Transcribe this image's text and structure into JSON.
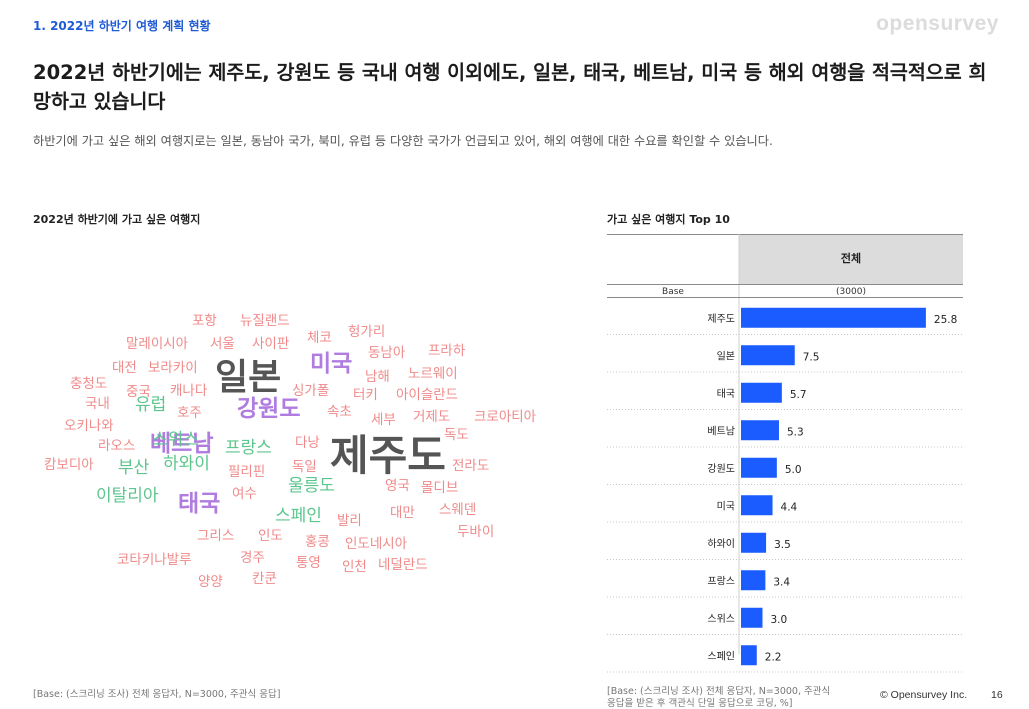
{
  "header": {
    "section_label": "1. 2022년 하반기 여행 계획 현황",
    "brand": "opensurvey",
    "headline": "2022년 하반기에는 제주도, 강원도 등 국내 여행 이외에도, 일본, 태국, 베트남, 미국 등 해외 여행을 적극적으로 희망하고 있습니다",
    "subtext": "하반기에 가고 싶은 해외 여행지로는 일본, 동남아 국가, 북미, 유럽 등 다양한 국가가 언급되고 있어, 해외 여행에 대한 수요를 확인할 수 있습니다."
  },
  "left_panel": {
    "title": "2022년 하반기에 가고 싶은 여행지",
    "footnote": "[Base: (스크리닝 조사) 전체 응답자, N=3000, 주관식 응답]"
  },
  "right_panel": {
    "title": "가고 싶은 여행지 Top 10",
    "footnote": "[Base: (스크리닝 조사) 전체 응답자, N=3000, 주관식 응답을 받은 후 객관식 단일 응답으로 코딩, %]"
  },
  "footer": {
    "copyright": "© Opensurvey Inc.",
    "page": "16"
  },
  "colors": {
    "accent": "#1f5bd6",
    "bar": "#1a5cff",
    "header_fill": "#dcdcdc",
    "cloud_pink": "#f08a8a",
    "cloud_green": "#5cc68c",
    "cloud_purple": "#b07ce0",
    "cloud_gray": "#555555"
  },
  "chart_data": [
    {
      "type": "wordcloud",
      "title": "2022년 하반기에 가고 싶은 여행지",
      "words": [
        {
          "text": "제주도",
          "weight": 10,
          "color": "gray"
        },
        {
          "text": "일본",
          "weight": 8,
          "color": "gray"
        },
        {
          "text": "미국",
          "weight": 6,
          "color": "purple"
        },
        {
          "text": "강원도",
          "weight": 6,
          "color": "purple"
        },
        {
          "text": "태국",
          "weight": 6,
          "color": "purple"
        },
        {
          "text": "베트남",
          "weight": 6,
          "color": "purple"
        },
        {
          "text": "유럽",
          "weight": 4,
          "color": "green"
        },
        {
          "text": "스위스",
          "weight": 4,
          "color": "green"
        },
        {
          "text": "프랑스",
          "weight": 4,
          "color": "green"
        },
        {
          "text": "부산",
          "weight": 4,
          "color": "green"
        },
        {
          "text": "하와이",
          "weight": 4,
          "color": "green"
        },
        {
          "text": "울릉도",
          "weight": 4,
          "color": "green"
        },
        {
          "text": "이탈리아",
          "weight": 4,
          "color": "green"
        },
        {
          "text": "스페인",
          "weight": 4,
          "color": "green"
        },
        {
          "text": "포항",
          "weight": 2,
          "color": "pink"
        },
        {
          "text": "뉴질랜드",
          "weight": 2,
          "color": "pink"
        },
        {
          "text": "체코",
          "weight": 2,
          "color": "pink"
        },
        {
          "text": "헝가리",
          "weight": 2,
          "color": "pink"
        },
        {
          "text": "말레이시아",
          "weight": 2,
          "color": "pink"
        },
        {
          "text": "서울",
          "weight": 2,
          "color": "pink"
        },
        {
          "text": "사이판",
          "weight": 2,
          "color": "pink"
        },
        {
          "text": "동남아",
          "weight": 2,
          "color": "pink"
        },
        {
          "text": "프라하",
          "weight": 2,
          "color": "pink"
        },
        {
          "text": "대전",
          "weight": 2,
          "color": "pink"
        },
        {
          "text": "보라카이",
          "weight": 2,
          "color": "pink"
        },
        {
          "text": "남해",
          "weight": 2,
          "color": "pink"
        },
        {
          "text": "노르웨이",
          "weight": 2,
          "color": "pink"
        },
        {
          "text": "충청도",
          "weight": 2,
          "color": "pink"
        },
        {
          "text": "중국",
          "weight": 2,
          "color": "pink"
        },
        {
          "text": "캐나다",
          "weight": 2,
          "color": "pink"
        },
        {
          "text": "싱가폴",
          "weight": 2,
          "color": "pink"
        },
        {
          "text": "터키",
          "weight": 2,
          "color": "pink"
        },
        {
          "text": "아이슬란드",
          "weight": 2,
          "color": "pink"
        },
        {
          "text": "국내",
          "weight": 2,
          "color": "pink"
        },
        {
          "text": "호주",
          "weight": 2,
          "color": "pink"
        },
        {
          "text": "속초",
          "weight": 2,
          "color": "pink"
        },
        {
          "text": "세부",
          "weight": 2,
          "color": "pink"
        },
        {
          "text": "거제도",
          "weight": 2,
          "color": "pink"
        },
        {
          "text": "크로아티아",
          "weight": 2,
          "color": "pink"
        },
        {
          "text": "오키나와",
          "weight": 2,
          "color": "pink"
        },
        {
          "text": "독도",
          "weight": 2,
          "color": "pink"
        },
        {
          "text": "라오스",
          "weight": 2,
          "color": "pink"
        },
        {
          "text": "다낭",
          "weight": 2,
          "color": "pink"
        },
        {
          "text": "캄보디아",
          "weight": 2,
          "color": "pink"
        },
        {
          "text": "필리핀",
          "weight": 2,
          "color": "pink"
        },
        {
          "text": "독일",
          "weight": 2,
          "color": "pink"
        },
        {
          "text": "전라도",
          "weight": 2,
          "color": "pink"
        },
        {
          "text": "영국",
          "weight": 2,
          "color": "pink"
        },
        {
          "text": "몰디브",
          "weight": 2,
          "color": "pink"
        },
        {
          "text": "여수",
          "weight": 2,
          "color": "pink"
        },
        {
          "text": "대만",
          "weight": 2,
          "color": "pink"
        },
        {
          "text": "스웨덴",
          "weight": 2,
          "color": "pink"
        },
        {
          "text": "발리",
          "weight": 2,
          "color": "pink"
        },
        {
          "text": "두바이",
          "weight": 2,
          "color": "pink"
        },
        {
          "text": "그리스",
          "weight": 2,
          "color": "pink"
        },
        {
          "text": "인도",
          "weight": 2,
          "color": "pink"
        },
        {
          "text": "홍콩",
          "weight": 2,
          "color": "pink"
        },
        {
          "text": "인도네시아",
          "weight": 2,
          "color": "pink"
        },
        {
          "text": "코타키나발루",
          "weight": 2,
          "color": "pink"
        },
        {
          "text": "경주",
          "weight": 2,
          "color": "pink"
        },
        {
          "text": "통영",
          "weight": 2,
          "color": "pink"
        },
        {
          "text": "인천",
          "weight": 2,
          "color": "pink"
        },
        {
          "text": "네덜란드",
          "weight": 2,
          "color": "pink"
        },
        {
          "text": "양양",
          "weight": 2,
          "color": "pink"
        },
        {
          "text": "칸쿤",
          "weight": 2,
          "color": "pink"
        }
      ]
    },
    {
      "type": "bar",
      "orientation": "horizontal",
      "title": "가고 싶은 여행지 Top 10",
      "column_header": "전체",
      "base_label": "Base",
      "base_value": "(3000)",
      "categories": [
        "제주도",
        "일본",
        "태국",
        "베트남",
        "강원도",
        "미국",
        "하와이",
        "프랑스",
        "스위스",
        "스페인"
      ],
      "values": [
        25.8,
        7.5,
        5.7,
        5.3,
        5.0,
        4.4,
        3.5,
        3.4,
        3.0,
        2.2
      ],
      "value_labels": [
        "25.8",
        "7.5",
        "5.7",
        "5.3",
        "5.0",
        "4.4",
        "3.5",
        "3.4",
        "3.0",
        "2.2"
      ],
      "xlim": [
        0,
        30
      ],
      "unit": "%"
    }
  ]
}
